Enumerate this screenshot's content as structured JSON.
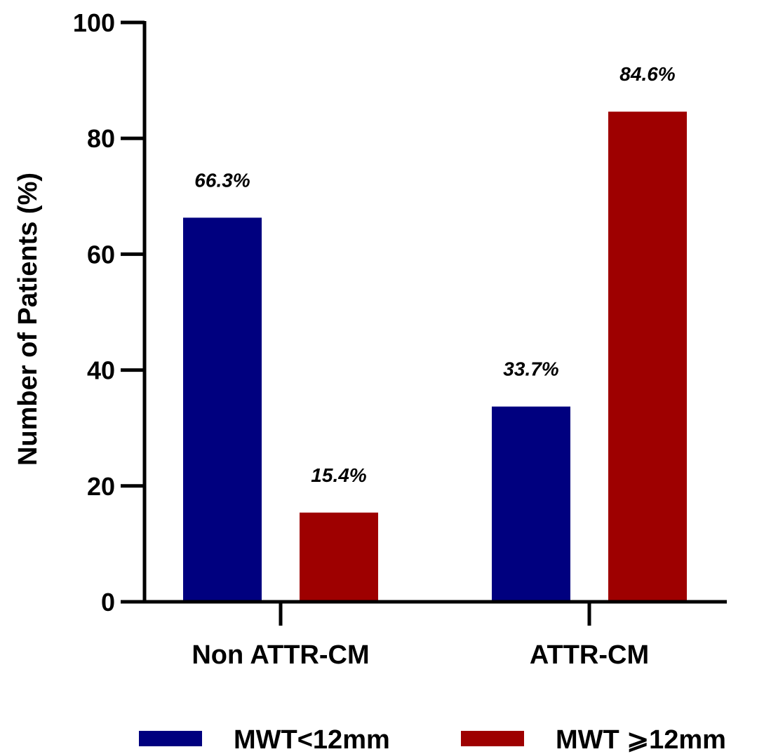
{
  "chart_data": {
    "type": "bar",
    "categories": [
      "Non ATTR-CM",
      "ATTR-CM"
    ],
    "series": [
      {
        "name": "MWT<12mm",
        "values": [
          66.3,
          33.7
        ],
        "labels": [
          "66.3%",
          "33.7%"
        ],
        "color": "#00007f"
      },
      {
        "name": "MWT ⩾12mm",
        "values": [
          15.4,
          84.6
        ],
        "labels": [
          "15.4%",
          "84.6%"
        ],
        "color": "#9e0000"
      }
    ],
    "ylabel": "Number of Patients (%)",
    "xlabel": "",
    "ylim": [
      0,
      100
    ],
    "yticks": [
      0,
      20,
      40,
      60,
      80,
      100
    ],
    "grid": false,
    "legend_position": "bottom"
  }
}
